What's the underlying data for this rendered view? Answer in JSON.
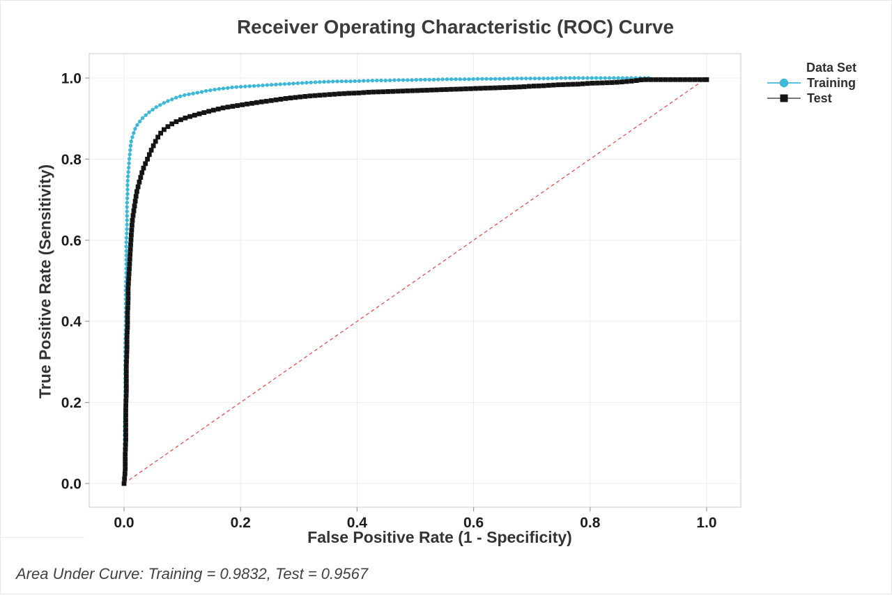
{
  "window": {
    "background": "#ffffff",
    "border_color": "#e6e6e6"
  },
  "footer_note": "Area Under Curve: Training = 0.9832, Test = 0.9567",
  "styles": {
    "grid_color": "#ededed",
    "frame_color": "#cbcbcb",
    "tick_color": "#9b9b9b",
    "tick_label_color": "#1c1c1c",
    "title_color": "#3b3b3b",
    "axis_label_color": "#333333",
    "legend_text_color": "#2e2e2e",
    "footer_color": "#414141"
  },
  "chart_data": {
    "type": "line",
    "title": "Receiver Operating Characteristic (ROC) Curve",
    "xlabel": "False Positive Rate (1 - Specificity)",
    "ylabel": "True Positive Rate (Sensitivity)",
    "xlim": [
      0,
      1
    ],
    "ylim": [
      0,
      1
    ],
    "x_ticks": [
      "0.0",
      "0.2",
      "0.4",
      "0.6",
      "0.8",
      "1.0"
    ],
    "y_ticks": [
      "0.0",
      "0.2",
      "0.4",
      "0.6",
      "0.8",
      "1.0"
    ],
    "grid": true,
    "legend_position": "right",
    "legend_title": "Data Set",
    "diagonal_reference": {
      "from": [
        0,
        0
      ],
      "to": [
        1,
        1
      ],
      "style": "dashed",
      "color": "#e35150"
    },
    "series": [
      {
        "name": "Training",
        "marker": "circle",
        "color": "#3fb7d7",
        "legend_line_color": "#3fb7d7",
        "auc": 0.9832,
        "points": [
          [
            0,
            0
          ],
          [
            0.001,
            0.04
          ],
          [
            0.001,
            0.09
          ],
          [
            0.001,
            0.14
          ],
          [
            0.002,
            0.19
          ],
          [
            0.002,
            0.24
          ],
          [
            0.002,
            0.29
          ],
          [
            0.002,
            0.34
          ],
          [
            0.003,
            0.39
          ],
          [
            0.003,
            0.44
          ],
          [
            0.003,
            0.48
          ],
          [
            0.004,
            0.52
          ],
          [
            0.004,
            0.56
          ],
          [
            0.004,
            0.6
          ],
          [
            0.005,
            0.63
          ],
          [
            0.005,
            0.66
          ],
          [
            0.005,
            0.69
          ],
          [
            0.006,
            0.715
          ],
          [
            0.006,
            0.74
          ],
          [
            0.007,
            0.76
          ],
          [
            0.008,
            0.78
          ],
          [
            0.009,
            0.8
          ],
          [
            0.01,
            0.815
          ],
          [
            0.011,
            0.83
          ],
          [
            0.012,
            0.842
          ],
          [
            0.014,
            0.853
          ],
          [
            0.016,
            0.862
          ],
          [
            0.018,
            0.871
          ],
          [
            0.02,
            0.878
          ],
          [
            0.023,
            0.885
          ],
          [
            0.026,
            0.891
          ],
          [
            0.029,
            0.897
          ],
          [
            0.033,
            0.903
          ],
          [
            0.037,
            0.908
          ],
          [
            0.041,
            0.913
          ],
          [
            0.045,
            0.918
          ],
          [
            0.05,
            0.923
          ],
          [
            0.055,
            0.928
          ],
          [
            0.06,
            0.932
          ],
          [
            0.066,
            0.937
          ],
          [
            0.072,
            0.941
          ],
          [
            0.078,
            0.945
          ],
          [
            0.085,
            0.949
          ],
          [
            0.092,
            0.953
          ],
          [
            0.099,
            0.956
          ],
          [
            0.107,
            0.959
          ],
          [
            0.115,
            0.961
          ],
          [
            0.123,
            0.963
          ],
          [
            0.131,
            0.965
          ],
          [
            0.14,
            0.968
          ],
          [
            0.149,
            0.97
          ],
          [
            0.158,
            0.972
          ],
          [
            0.167,
            0.974
          ],
          [
            0.176,
            0.975
          ],
          [
            0.186,
            0.977
          ],
          [
            0.196,
            0.978
          ],
          [
            0.206,
            0.979
          ],
          [
            0.216,
            0.98
          ],
          [
            0.227,
            0.981
          ],
          [
            0.238,
            0.982
          ],
          [
            0.249,
            0.983
          ],
          [
            0.26,
            0.984
          ],
          [
            0.272,
            0.985
          ],
          [
            0.284,
            0.986
          ],
          [
            0.296,
            0.987
          ],
          [
            0.308,
            0.988
          ],
          [
            0.32,
            0.989
          ],
          [
            0.333,
            0.99
          ],
          [
            0.35,
            0.991
          ],
          [
            0.37,
            0.992
          ],
          [
            0.39,
            0.992
          ],
          [
            0.41,
            0.993
          ],
          [
            0.43,
            0.994
          ],
          [
            0.45,
            0.994
          ],
          [
            0.47,
            0.995
          ],
          [
            0.49,
            0.995
          ],
          [
            0.51,
            0.996
          ],
          [
            0.53,
            0.996
          ],
          [
            0.55,
            0.997
          ],
          [
            0.57,
            0.997
          ],
          [
            0.59,
            0.997
          ],
          [
            0.61,
            0.998
          ],
          [
            0.63,
            0.998
          ],
          [
            0.65,
            0.998
          ],
          [
            0.67,
            0.999
          ],
          [
            0.69,
            0.999
          ],
          [
            0.71,
            0.999
          ],
          [
            0.73,
            0.999
          ],
          [
            0.75,
            1
          ],
          [
            0.77,
            1
          ],
          [
            0.79,
            1
          ],
          [
            0.81,
            1
          ],
          [
            0.83,
            1
          ],
          [
            0.85,
            1
          ],
          [
            0.87,
            1
          ],
          [
            0.885,
            1
          ],
          [
            0.9,
            1
          ]
        ]
      },
      {
        "name": "Test",
        "marker": "square",
        "color": "#141414",
        "legend_line_color": "#4a4a4a",
        "auc": 0.9567,
        "points": [
          [
            0,
            0
          ],
          [
            0.002,
            0.03
          ],
          [
            0.002,
            0.07
          ],
          [
            0.003,
            0.11
          ],
          [
            0.003,
            0.15
          ],
          [
            0.003,
            0.19
          ],
          [
            0.004,
            0.225
          ],
          [
            0.004,
            0.26
          ],
          [
            0.004,
            0.295
          ],
          [
            0.005,
            0.33
          ],
          [
            0.005,
            0.36
          ],
          [
            0.006,
            0.39
          ],
          [
            0.006,
            0.42
          ],
          [
            0.007,
            0.45
          ],
          [
            0.007,
            0.48
          ],
          [
            0.008,
            0.505
          ],
          [
            0.009,
            0.53
          ],
          [
            0.01,
            0.555
          ],
          [
            0.011,
            0.58
          ],
          [
            0.012,
            0.603
          ],
          [
            0.013,
            0.625
          ],
          [
            0.014,
            0.645
          ],
          [
            0.016,
            0.665
          ],
          [
            0.018,
            0.685
          ],
          [
            0.02,
            0.703
          ],
          [
            0.022,
            0.72
          ],
          [
            0.025,
            0.737
          ],
          [
            0.028,
            0.753
          ],
          [
            0.031,
            0.768
          ],
          [
            0.034,
            0.78
          ],
          [
            0.038,
            0.793
          ],
          [
            0.042,
            0.806
          ],
          [
            0.046,
            0.82
          ],
          [
            0.051,
            0.835
          ],
          [
            0.056,
            0.849
          ],
          [
            0.061,
            0.861
          ],
          [
            0.067,
            0.871
          ],
          [
            0.074,
            0.879
          ],
          [
            0.081,
            0.886
          ],
          [
            0.089,
            0.892
          ],
          [
            0.097,
            0.897
          ],
          [
            0.106,
            0.902
          ],
          [
            0.115,
            0.906
          ],
          [
            0.125,
            0.91
          ],
          [
            0.135,
            0.914
          ],
          [
            0.146,
            0.918
          ],
          [
            0.157,
            0.922
          ],
          [
            0.169,
            0.926
          ],
          [
            0.181,
            0.929
          ],
          [
            0.194,
            0.932
          ],
          [
            0.207,
            0.935
          ],
          [
            0.221,
            0.938
          ],
          [
            0.235,
            0.941
          ],
          [
            0.25,
            0.944
          ],
          [
            0.265,
            0.947
          ],
          [
            0.28,
            0.95
          ],
          [
            0.3,
            0.953
          ],
          [
            0.32,
            0.956
          ],
          [
            0.34,
            0.958
          ],
          [
            0.36,
            0.96
          ],
          [
            0.38,
            0.962
          ],
          [
            0.4,
            0.963
          ],
          [
            0.42,
            0.965
          ],
          [
            0.44,
            0.966
          ],
          [
            0.46,
            0.967
          ],
          [
            0.48,
            0.968
          ],
          [
            0.5,
            0.969
          ],
          [
            0.52,
            0.97
          ],
          [
            0.54,
            0.971
          ],
          [
            0.56,
            0.972
          ],
          [
            0.58,
            0.973
          ],
          [
            0.6,
            0.974
          ],
          [
            0.62,
            0.975
          ],
          [
            0.64,
            0.976
          ],
          [
            0.66,
            0.977
          ],
          [
            0.68,
            0.978
          ],
          [
            0.7,
            0.98
          ],
          [
            0.72,
            0.981
          ],
          [
            0.74,
            0.983
          ],
          [
            0.76,
            0.984
          ],
          [
            0.78,
            0.985
          ],
          [
            0.8,
            0.987
          ],
          [
            0.82,
            0.988
          ],
          [
            0.84,
            0.989
          ],
          [
            0.86,
            0.991
          ],
          [
            0.875,
            0.993
          ],
          [
            0.89,
            0.996
          ],
          [
            0.9,
            0.996
          ],
          [
            0.92,
            0.996
          ],
          [
            0.94,
            0.996
          ],
          [
            0.96,
            0.996
          ],
          [
            0.98,
            0.996
          ],
          [
            1,
            0.996
          ]
        ]
      }
    ]
  }
}
